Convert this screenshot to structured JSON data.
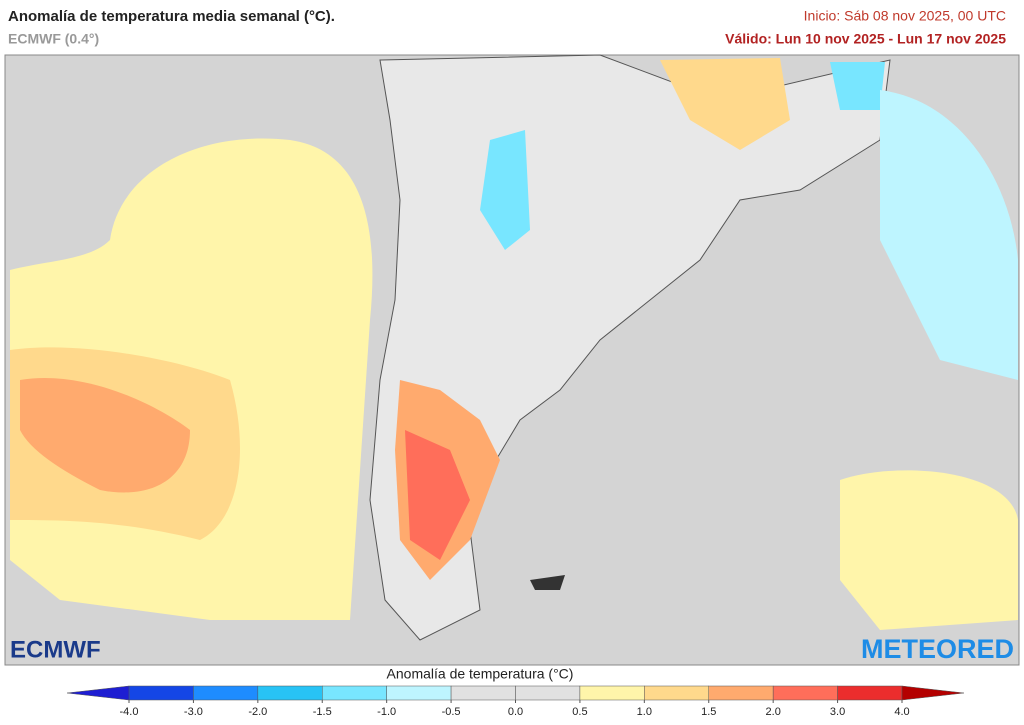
{
  "header": {
    "title": "Anomalía de temperatura media semanal (°C).",
    "model": "ECMWF (0.4°)",
    "init": "Inicio: Sáb 08 nov 2025, 00 UTC",
    "valid": "Válido: Lun 10 nov 2025 - Lun 17 nov 2025"
  },
  "logos": {
    "left": "ECMWF",
    "right": "METEORED"
  },
  "colorbar": {
    "label": "Anomalía de temperatura (°C)",
    "ticks": [
      {
        "value": -4,
        "label": "-4.0"
      },
      {
        "value": -3,
        "label": "-3.0"
      },
      {
        "value": -2,
        "label": "-2.0"
      },
      -1.5,
      {
        "value": -1,
        "label": "-1.0"
      },
      -0.5,
      {
        "value": 0,
        "label": "0.0"
      },
      0.5,
      {
        "value": 1,
        "label": "1.0"
      },
      1.5,
      {
        "value": 2,
        "label": "2.0"
      },
      {
        "value": 3,
        "label": "3.0"
      },
      {
        "value": 4,
        "label": "4.0"
      }
    ],
    "colors": [
      "#1446e6",
      "#1e8cff",
      "#28c3f5",
      "#78e6ff",
      "#bef5ff",
      "#e1e1e1",
      "#e1e1e1",
      "#fff5aa",
      "#ffd98c",
      "#ffaa6e",
      "#ff6e5a",
      "#eb2d2d"
    ],
    "low_color": "#1e1ed2",
    "high_color": "#b40000"
  }
}
